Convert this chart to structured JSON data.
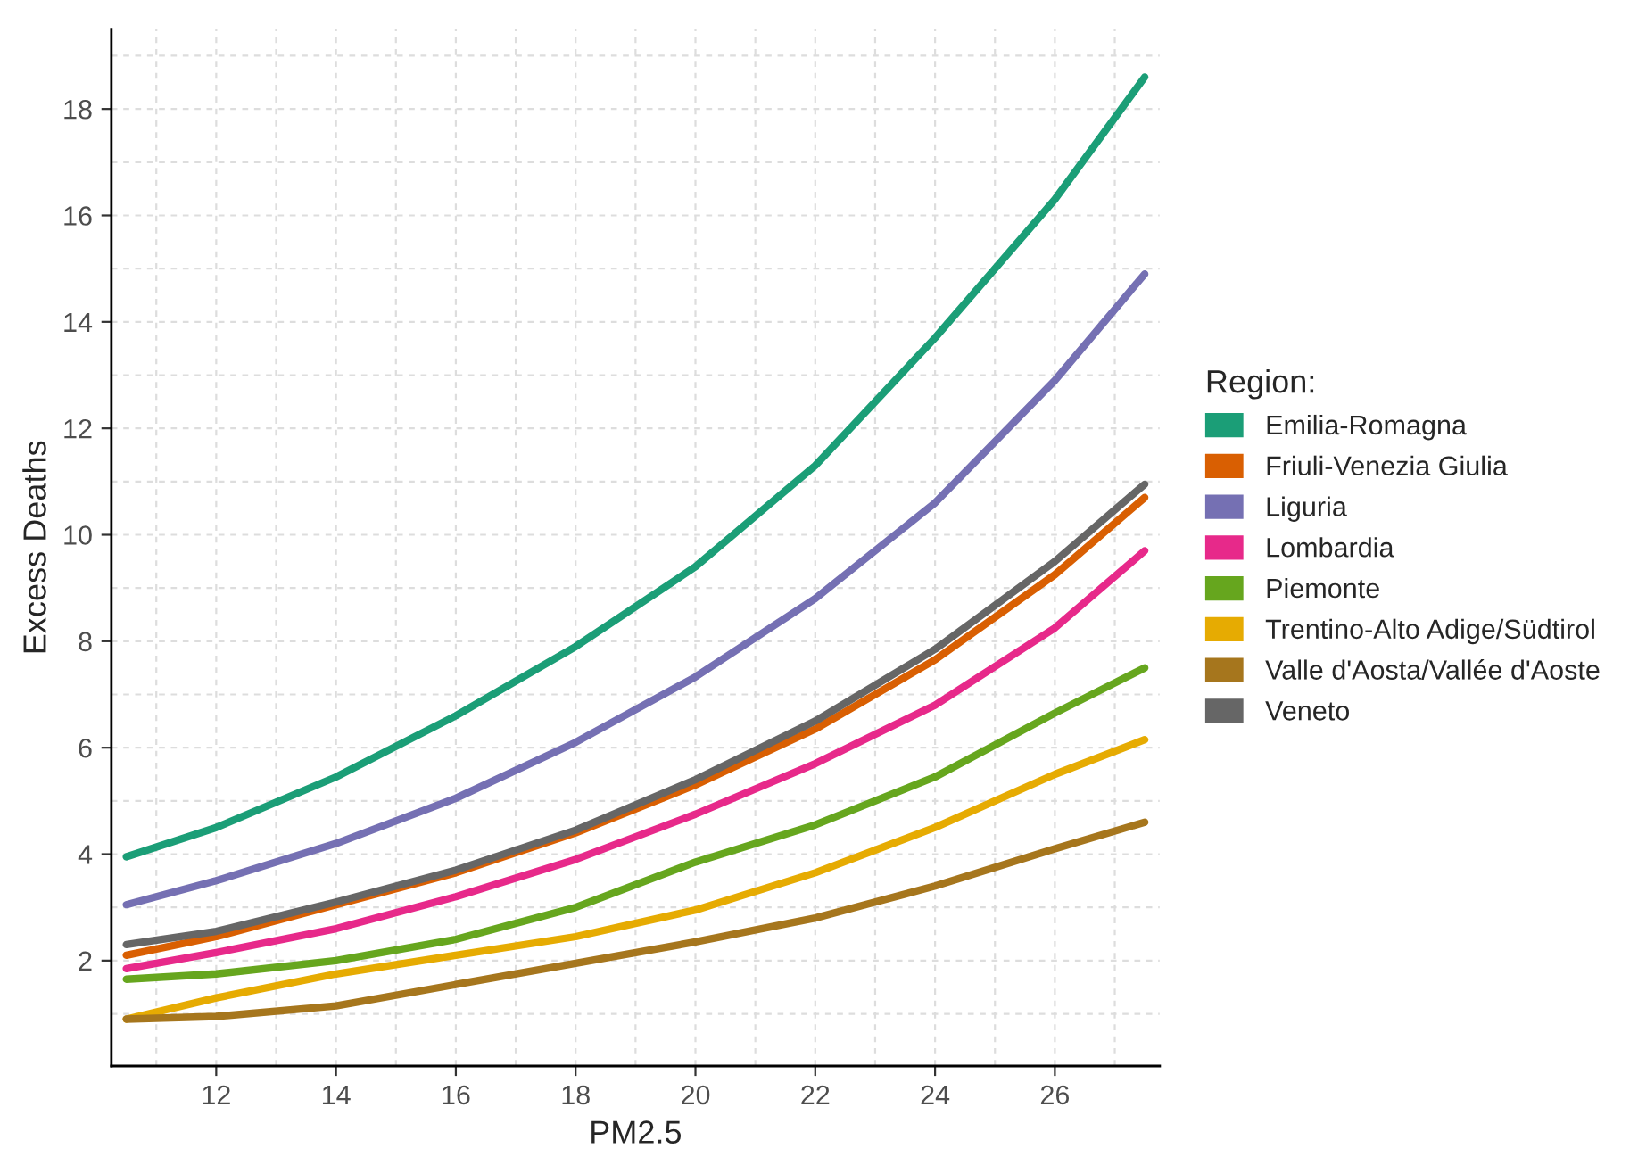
{
  "chart_data": {
    "type": "line",
    "xlabel": "PM2.5",
    "ylabel": "Excess Deaths",
    "legend_title": "Region:",
    "legend": "right",
    "grid": true,
    "line_style": "solid",
    "marker": "none",
    "xlim": [
      10.25,
      27.75
    ],
    "ylim": [
      0.02,
      19.5
    ],
    "xticks": [
      12,
      14,
      16,
      18,
      20,
      22,
      24,
      26
    ],
    "yticks": [
      2,
      4,
      6,
      8,
      10,
      12,
      14,
      16,
      18
    ],
    "x": [
      10.5,
      12,
      14,
      16,
      18,
      20,
      22,
      24,
      26,
      27.5
    ],
    "series": [
      {
        "name": "Emilia-Romagna",
        "color": "#1b9e77",
        "values": [
          3.95,
          4.5,
          5.45,
          6.6,
          7.9,
          9.4,
          11.3,
          13.7,
          16.3,
          18.6
        ]
      },
      {
        "name": "Friuli-Venezia Giulia",
        "color": "#d95f02",
        "values": [
          2.1,
          2.45,
          3.05,
          3.65,
          4.4,
          5.3,
          6.35,
          7.65,
          9.25,
          10.7
        ]
      },
      {
        "name": "Liguria",
        "color": "#7570b3",
        "values": [
          3.05,
          3.5,
          4.2,
          5.05,
          6.1,
          7.33,
          8.8,
          10.6,
          12.9,
          14.9
        ]
      },
      {
        "name": "Lombardia",
        "color": "#e7298a",
        "values": [
          1.85,
          2.15,
          2.6,
          3.2,
          3.9,
          4.75,
          5.7,
          6.8,
          8.25,
          9.7
        ]
      },
      {
        "name": "Piemonte",
        "color": "#66a61e",
        "values": [
          1.65,
          1.75,
          2.0,
          2.4,
          3.0,
          3.85,
          4.55,
          5.45,
          6.65,
          7.5
        ]
      },
      {
        "name": "Trentino-Alto Adige/Südtirol",
        "color": "#e6ab02",
        "values": [
          0.9,
          1.3,
          1.75,
          2.1,
          2.45,
          2.95,
          3.65,
          4.5,
          5.5,
          6.15
        ]
      },
      {
        "name": "Valle d'Aosta/Vallée d'Aoste",
        "color": "#a6761d",
        "values": [
          0.9,
          0.95,
          1.15,
          1.55,
          1.95,
          2.35,
          2.8,
          3.4,
          4.1,
          4.6
        ]
      },
      {
        "name": "Veneto",
        "color": "#666666",
        "values": [
          2.3,
          2.55,
          3.1,
          3.7,
          4.45,
          5.4,
          6.5,
          7.85,
          9.5,
          10.95
        ]
      }
    ]
  }
}
